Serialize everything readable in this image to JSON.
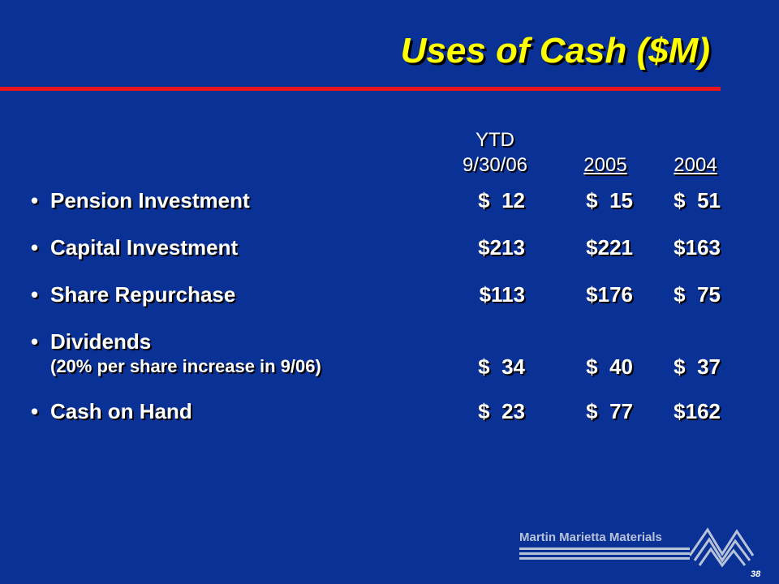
{
  "title": "Uses of Cash ($M)",
  "columns": {
    "ytd_line1": "YTD",
    "ytd_line2": "9/30/06",
    "y2005": "2005",
    "y2004": "2004"
  },
  "rows": [
    {
      "label": "Pension Investment",
      "sublabel": "",
      "values": [
        "$  12",
        "$  15",
        "$  51"
      ]
    },
    {
      "label": "Capital Investment",
      "sublabel": "",
      "values": [
        "$213",
        "$221",
        "$163"
      ]
    },
    {
      "label": "Share Repurchase",
      "sublabel": "",
      "values": [
        "$113",
        "$176",
        "$  75"
      ]
    },
    {
      "label": "Dividends",
      "sublabel": "(20% per share increase in 9/06)",
      "values": [
        "$  34",
        "$  40",
        "$  37"
      ]
    },
    {
      "label": "Cash on Hand",
      "sublabel": "",
      "values": [
        "$  23",
        "$  77",
        "$162"
      ]
    }
  ],
  "bullet": "•",
  "logo": {
    "text": "Martin Marietta Materials"
  },
  "page_number": "38",
  "colors": {
    "background": "#0a3296",
    "title": "#ffff00",
    "rule": "#e8141e",
    "logo": "#b8c2d8"
  }
}
